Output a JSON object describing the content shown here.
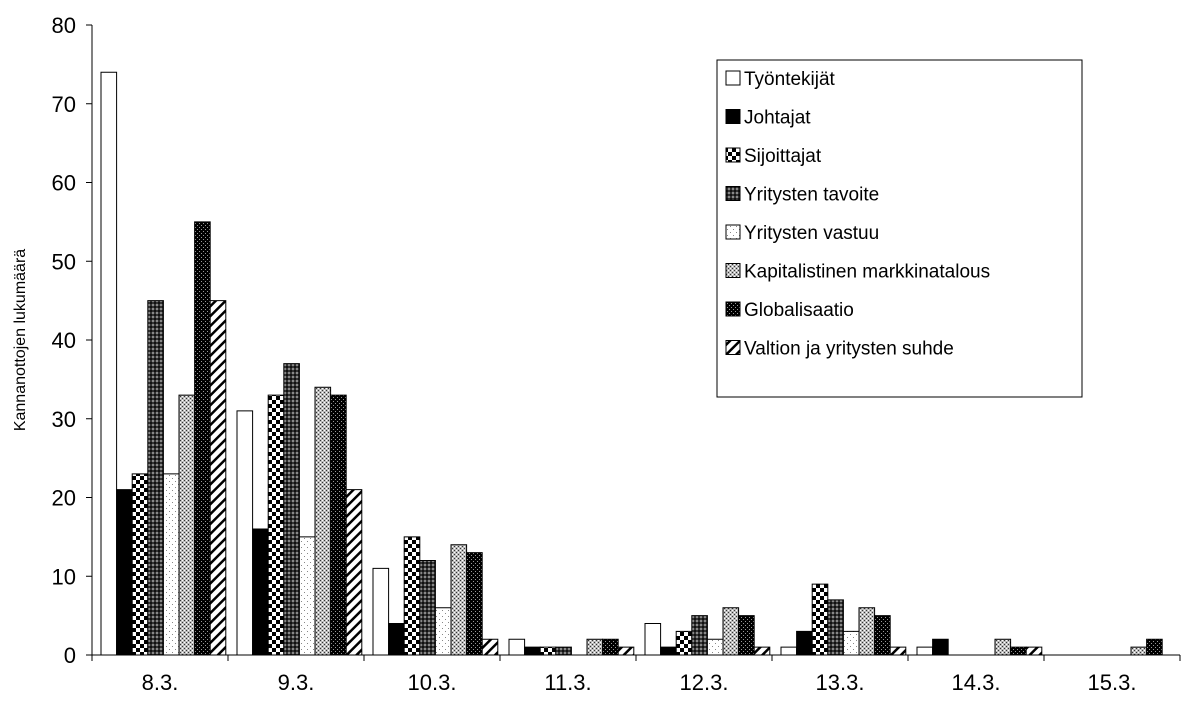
{
  "chart_data": {
    "type": "bar",
    "title": "",
    "xlabel": "",
    "ylabel": "Kannanottojen lukumäärä",
    "ylim": [
      0,
      80
    ],
    "yticks": [
      0,
      10,
      20,
      30,
      40,
      50,
      60,
      70,
      80
    ],
    "grid": false,
    "legend_position": "top-right",
    "categories": [
      "8.3.",
      "9.3.",
      "10.3.",
      "11.3.",
      "12.3.",
      "13.3.",
      "14.3.",
      "15.3."
    ],
    "series": [
      {
        "name": "Työntekijät",
        "pattern": "white",
        "values": [
          74,
          31,
          11,
          2,
          4,
          1,
          1,
          0
        ]
      },
      {
        "name": "Johtajat",
        "pattern": "black",
        "values": [
          21,
          16,
          4,
          1,
          1,
          3,
          2,
          0
        ]
      },
      {
        "name": "Sijoittajat",
        "pattern": "checker",
        "values": [
          23,
          33,
          15,
          1,
          3,
          9,
          0,
          0
        ]
      },
      {
        "name": "Yritysten tavoite",
        "pattern": "darkgrid",
        "values": [
          45,
          37,
          12,
          1,
          5,
          7,
          0,
          0
        ]
      },
      {
        "name": "Yritysten vastuu",
        "pattern": "lightdots",
        "values": [
          23,
          15,
          6,
          0,
          2,
          3,
          0,
          0
        ]
      },
      {
        "name": "Kapitalistinen markkinatalous",
        "pattern": "greydots",
        "values": [
          33,
          34,
          14,
          2,
          6,
          6,
          2,
          1
        ]
      },
      {
        "name": "Globalisaatio",
        "pattern": "blackdots",
        "values": [
          55,
          33,
          13,
          2,
          5,
          5,
          1,
          2
        ]
      },
      {
        "name": "Valtion ja yritysten suhde",
        "pattern": "diagonal",
        "values": [
          45,
          21,
          2,
          1,
          1,
          1,
          1,
          0
        ]
      }
    ]
  }
}
